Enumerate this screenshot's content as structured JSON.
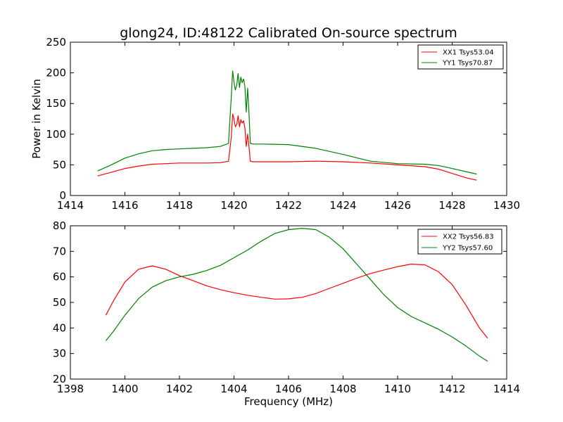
{
  "chart_data": [
    {
      "type": "line",
      "title": "glong24, ID:48122 Calibrated On-source spectrum",
      "xlabel": "",
      "ylabel": "Power in Kelvin",
      "xlim": [
        1414,
        1430
      ],
      "ylim": [
        0,
        250
      ],
      "xticks": [
        "1414",
        "1416",
        "1418",
        "1420",
        "1422",
        "1424",
        "1426",
        "1428",
        "1430"
      ],
      "yticks": [
        "0",
        "50",
        "100",
        "150",
        "200",
        "250"
      ],
      "legend_position": "top-right",
      "series": [
        {
          "name": "XX1 Tsys53.04",
          "color": "#ff0000",
          "points": [
            [
              1415.0,
              32
            ],
            [
              1415.5,
              38
            ],
            [
              1416.0,
              44
            ],
            [
              1416.5,
              48
            ],
            [
              1417.0,
              51
            ],
            [
              1417.5,
              52
            ],
            [
              1418.0,
              53
            ],
            [
              1418.5,
              53
            ],
            [
              1419.0,
              53
            ],
            [
              1419.5,
              53.5
            ],
            [
              1419.8,
              56
            ],
            [
              1419.9,
              95
            ],
            [
              1419.95,
              133
            ],
            [
              1420.0,
              125
            ],
            [
              1420.05,
              112
            ],
            [
              1420.1,
              116
            ],
            [
              1420.15,
              130
            ],
            [
              1420.2,
              112
            ],
            [
              1420.25,
              124
            ],
            [
              1420.3,
              118
            ],
            [
              1420.35,
              122
            ],
            [
              1420.4,
              110
            ],
            [
              1420.45,
              80
            ],
            [
              1420.5,
              100
            ],
            [
              1420.55,
              80
            ],
            [
              1420.6,
              56
            ],
            [
              1420.7,
              55
            ],
            [
              1421.0,
              55
            ],
            [
              1422.0,
              55
            ],
            [
              1423.0,
              56
            ],
            [
              1424.0,
              55
            ],
            [
              1425.0,
              53
            ],
            [
              1426.0,
              50
            ],
            [
              1427.0,
              47
            ],
            [
              1427.5,
              43
            ],
            [
              1428.0,
              36
            ],
            [
              1428.5,
              29
            ],
            [
              1428.9,
              25
            ]
          ]
        },
        {
          "name": "YY1 Tsys70.87",
          "color": "#008000",
          "points": [
            [
              1415.0,
              40
            ],
            [
              1415.5,
              50
            ],
            [
              1416.0,
              61
            ],
            [
              1416.5,
              68
            ],
            [
              1417.0,
              73
            ],
            [
              1417.5,
              75
            ],
            [
              1418.0,
              76
            ],
            [
              1418.5,
              77
            ],
            [
              1419.0,
              78
            ],
            [
              1419.5,
              80
            ],
            [
              1419.8,
              85
            ],
            [
              1419.9,
              160
            ],
            [
              1419.95,
              203
            ],
            [
              1420.0,
              185
            ],
            [
              1420.05,
              172
            ],
            [
              1420.1,
              180
            ],
            [
              1420.15,
              199
            ],
            [
              1420.2,
              176
            ],
            [
              1420.25,
              193
            ],
            [
              1420.3,
              184
            ],
            [
              1420.35,
              190
            ],
            [
              1420.4,
              178
            ],
            [
              1420.45,
              136
            ],
            [
              1420.5,
              175
            ],
            [
              1420.55,
              135
            ],
            [
              1420.6,
              85
            ],
            [
              1420.7,
              84
            ],
            [
              1421.0,
              84
            ],
            [
              1422.0,
              83
            ],
            [
              1423.0,
              77
            ],
            [
              1424.0,
              67
            ],
            [
              1425.0,
              56
            ],
            [
              1426.0,
              52
            ],
            [
              1427.0,
              51
            ],
            [
              1427.5,
              49
            ],
            [
              1428.0,
              44
            ],
            [
              1428.5,
              39
            ],
            [
              1428.9,
              35
            ]
          ]
        }
      ]
    },
    {
      "type": "line",
      "title": "",
      "xlabel": "Frequency (MHz)",
      "ylabel": "",
      "xlim": [
        1398,
        1414
      ],
      "ylim": [
        20,
        80
      ],
      "xticks": [
        "1398",
        "1400",
        "1402",
        "1404",
        "1406",
        "1408",
        "1410",
        "1412",
        "1414"
      ],
      "yticks": [
        "20",
        "30",
        "40",
        "50",
        "60",
        "70",
        "80"
      ],
      "legend_position": "top-right",
      "series": [
        {
          "name": "XX2 Tsys56.83",
          "color": "#ff0000",
          "points": [
            [
              1399.3,
              45
            ],
            [
              1399.6,
              51
            ],
            [
              1400.0,
              58
            ],
            [
              1400.5,
              63
            ],
            [
              1401.0,
              64.3
            ],
            [
              1401.5,
              63
            ],
            [
              1402.0,
              60.5
            ],
            [
              1402.5,
              58.5
            ],
            [
              1403.0,
              56.5
            ],
            [
              1403.5,
              55
            ],
            [
              1404.0,
              53.8
            ],
            [
              1404.5,
              52.8
            ],
            [
              1405.0,
              52
            ],
            [
              1405.5,
              51.3
            ],
            [
              1406.0,
              51.4
            ],
            [
              1406.5,
              52
            ],
            [
              1407.0,
              53.5
            ],
            [
              1407.5,
              55.5
            ],
            [
              1408.0,
              57.5
            ],
            [
              1408.5,
              59.5
            ],
            [
              1409.0,
              61.3
            ],
            [
              1409.5,
              62.7
            ],
            [
              1410.0,
              64
            ],
            [
              1410.5,
              65
            ],
            [
              1411.0,
              64.7
            ],
            [
              1411.5,
              62
            ],
            [
              1412.0,
              57
            ],
            [
              1412.5,
              49
            ],
            [
              1413.0,
              40
            ],
            [
              1413.3,
              36
            ]
          ]
        },
        {
          "name": "YY2 Tsys57.60",
          "color": "#008000",
          "points": [
            [
              1399.3,
              35
            ],
            [
              1399.6,
              39
            ],
            [
              1400.0,
              45
            ],
            [
              1400.5,
              51.5
            ],
            [
              1401.0,
              56
            ],
            [
              1401.5,
              58.5
            ],
            [
              1402.0,
              60
            ],
            [
              1402.5,
              61
            ],
            [
              1403.0,
              62.5
            ],
            [
              1403.5,
              64.5
            ],
            [
              1404.0,
              67.5
            ],
            [
              1404.5,
              70.5
            ],
            [
              1405.0,
              74
            ],
            [
              1405.5,
              77
            ],
            [
              1406.0,
              78.5
            ],
            [
              1406.5,
              79
            ],
            [
              1407.0,
              78.5
            ],
            [
              1407.5,
              75.5
            ],
            [
              1408.0,
              71
            ],
            [
              1408.5,
              65
            ],
            [
              1409.0,
              59
            ],
            [
              1409.5,
              53
            ],
            [
              1410.0,
              48
            ],
            [
              1410.5,
              44.5
            ],
            [
              1411.0,
              42
            ],
            [
              1411.5,
              39.5
            ],
            [
              1412.0,
              36.5
            ],
            [
              1412.5,
              33
            ],
            [
              1413.0,
              29
            ],
            [
              1413.3,
              27
            ]
          ]
        }
      ]
    }
  ]
}
